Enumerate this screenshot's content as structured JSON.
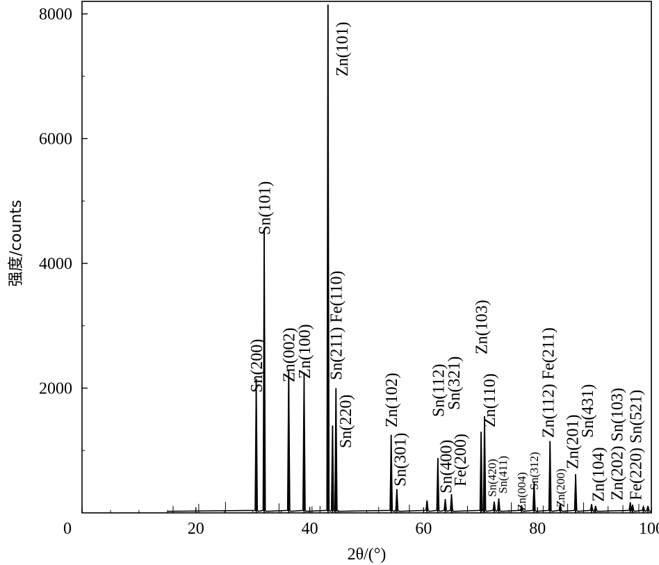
{
  "chart_data": {
    "type": "line",
    "xlabel": "2θ/(°)",
    "ylabel": "强度/counts",
    "xlim": [
      0,
      100
    ],
    "ylim": [
      0,
      8200
    ],
    "x_ticks": [
      "0",
      "20",
      "40",
      "60",
      "80",
      "100"
    ],
    "y_ticks": [
      "2000",
      "4000",
      "6000",
      "8000"
    ],
    "peaks": [
      {
        "x": 30.6,
        "y": 2150
      },
      {
        "x": 32.0,
        "y": 4530
      },
      {
        "x": 36.3,
        "y": 2300
      },
      {
        "x": 39.0,
        "y": 2250
      },
      {
        "x": 43.2,
        "y": 8150
      },
      {
        "x": 44.6,
        "y": 2000
      },
      {
        "x": 44.0,
        "y": 1400
      },
      {
        "x": 54.3,
        "y": 1250
      },
      {
        "x": 55.3,
        "y": 380
      },
      {
        "x": 60.6,
        "y": 200
      },
      {
        "x": 62.5,
        "y": 880
      },
      {
        "x": 63.8,
        "y": 220
      },
      {
        "x": 64.9,
        "y": 300
      },
      {
        "x": 70.1,
        "y": 1300
      },
      {
        "x": 70.7,
        "y": 1550
      },
      {
        "x": 72.4,
        "y": 180
      },
      {
        "x": 73.2,
        "y": 230
      },
      {
        "x": 77.2,
        "y": 120
      },
      {
        "x": 79.4,
        "y": 500
      },
      {
        "x": 82.2,
        "y": 1150
      },
      {
        "x": 84.0,
        "y": 150
      },
      {
        "x": 86.7,
        "y": 620
      },
      {
        "x": 89.5,
        "y": 140
      },
      {
        "x": 90.2,
        "y": 110
      },
      {
        "x": 96.3,
        "y": 170
      },
      {
        "x": 96.7,
        "y": 130
      },
      {
        "x": 98.6,
        "y": 100
      },
      {
        "x": 99.4,
        "y": 110
      }
    ],
    "annotations": [
      {
        "text": "Sn(200)",
        "x": 30.6,
        "size": 24
      },
      {
        "text": "Sn(101)",
        "x": 32.0,
        "size": 24
      },
      {
        "text": "Zn(002)",
        "x": 36.3,
        "size": 24
      },
      {
        "text": "Zn(100)",
        "x": 39.0,
        "size": 24
      },
      {
        "text": "Zn(101)",
        "x": 43.2,
        "size": 24
      },
      {
        "text": "Sn(211) Fe(110)",
        "x": 44.6,
        "size": 24
      },
      {
        "text": "Sn(220)",
        "x": 46.2,
        "size": 24
      },
      {
        "text": "Zn(102)",
        "x": 54.3,
        "size": 24
      },
      {
        "text": "Sn(301)",
        "x": 55.8,
        "size": 24
      },
      {
        "text": "Sn(112)",
        "x": 62.5,
        "size": 24
      },
      {
        "text": "Sn(400)",
        "x": 63.9,
        "size": 24
      },
      {
        "text": "Sn(321)",
        "x": 65.3,
        "size": 24
      },
      {
        "text": "Fe(200)",
        "x": 66.4,
        "size": 24
      },
      {
        "text": "Zn(103)",
        "x": 70.1,
        "size": 24
      },
      {
        "text": "Zn(110)",
        "x": 71.5,
        "size": 24
      },
      {
        "text": "Sn(420)",
        "x": 72.0,
        "size": 17
      },
      {
        "text": "Sn(411)",
        "x": 73.9,
        "size": 17
      },
      {
        "text": "Zn(004)",
        "x": 77.2,
        "size": 17
      },
      {
        "text": "Sn(312)",
        "x": 79.4,
        "size": 17
      },
      {
        "text": "Zn(112) Fe(211)",
        "x": 81.8,
        "size": 24
      },
      {
        "text": "Zn(200)",
        "x": 84.0,
        "size": 17
      },
      {
        "text": "Zn(201)",
        "x": 86.1,
        "size": 24
      },
      {
        "text": "Sn(431)",
        "x": 88.7,
        "size": 24
      },
      {
        "text": "Zn(104)",
        "x": 90.6,
        "size": 24
      },
      {
        "text": "Zn(202) Sn(103)",
        "x": 93.9,
        "size": 24
      },
      {
        "text": "Fe(220) Sn(521)",
        "x": 97.2,
        "size": 24
      }
    ]
  }
}
